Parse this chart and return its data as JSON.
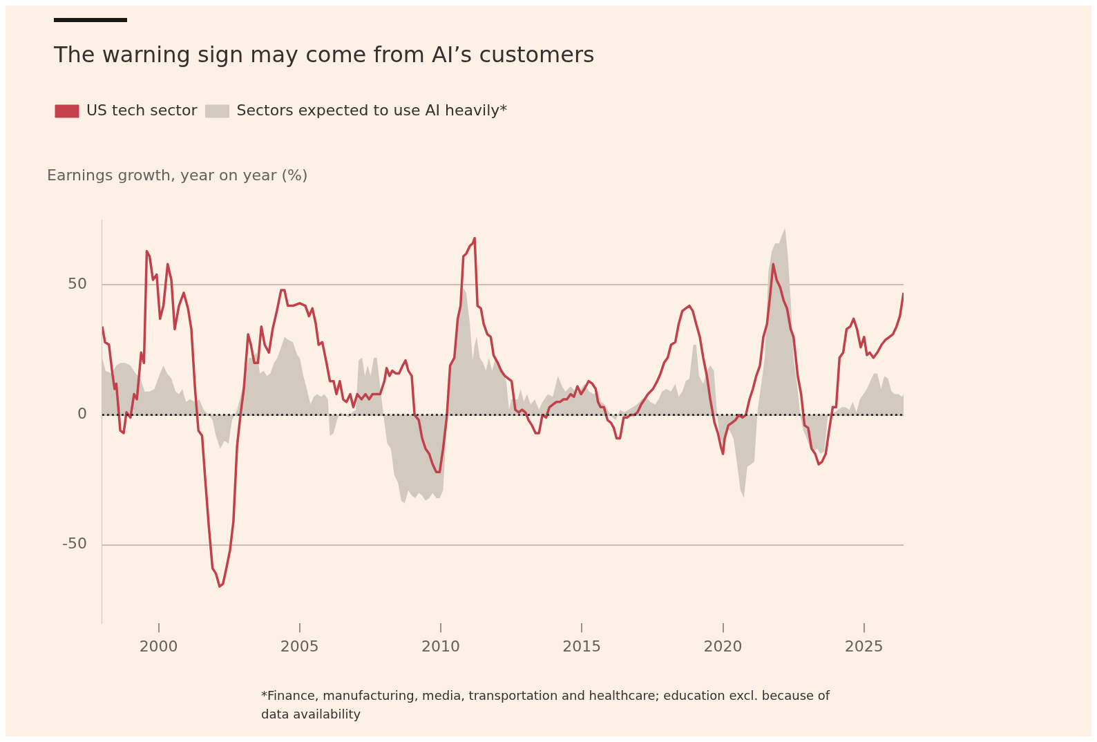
{
  "chart_data": {
    "type": "area",
    "title": "The warning sign may come from AI’s customers",
    "ylabel": "Earnings growth, year on year (%)",
    "annotations": [
      "*Finance, manufacturing, media, transportation and healthcare; education excl. because of data availability"
    ],
    "xlim": [
      1998,
      2026.4
    ],
    "xticks": [
      2000,
      2005,
      2010,
      2015,
      2020,
      2025
    ],
    "ylim": [
      -80,
      75
    ],
    "yticks": [
      -50,
      0,
      50
    ],
    "grid": "y",
    "legend": "top left",
    "ref_lines": [
      {
        "axis": "y",
        "value": 0,
        "label": null,
        "color": "#333333",
        "line_style": "dotted"
      }
    ],
    "series": [
      {
        "name": "US tech sector",
        "type": "line",
        "color": "#c2404a",
        "x": [
          1998.0,
          1998.1,
          1998.24,
          1998.36,
          1998.44,
          1998.5,
          1998.64,
          1998.76,
          1998.86,
          1999.0,
          1999.13,
          1999.23,
          1999.38,
          1999.48,
          1999.58,
          1999.68,
          1999.8,
          1999.93,
          2000.05,
          2000.17,
          2000.32,
          2000.45,
          2000.57,
          2000.72,
          2000.89,
          2001.04,
          2001.16,
          2001.29,
          2001.41,
          2001.54,
          2001.66,
          2001.78,
          2001.91,
          2002.03,
          2002.16,
          2002.28,
          2002.4,
          2002.53,
          2002.65,
          2002.78,
          2002.9,
          2003.02,
          2003.17,
          2003.27,
          2003.39,
          2003.52,
          2003.64,
          2003.76,
          2003.91,
          2004.04,
          2004.19,
          2004.34,
          2004.46,
          2004.58,
          2004.76,
          2005.0,
          2005.2,
          2005.33,
          2005.45,
          2005.57,
          2005.67,
          2005.8,
          2005.95,
          2006.07,
          2006.2,
          2006.3,
          2006.42,
          2006.54,
          2006.66,
          2006.79,
          2006.9,
          2007.04,
          2007.19,
          2007.33,
          2007.46,
          2007.58,
          2007.73,
          2007.85,
          2008.0,
          2008.08,
          2008.18,
          2008.28,
          2008.4,
          2008.52,
          2008.65,
          2008.75,
          2008.85,
          2008.97,
          2009.07,
          2009.22,
          2009.34,
          2009.46,
          2009.59,
          2009.71,
          2009.84,
          2009.96,
          2010.08,
          2010.21,
          2010.33,
          2010.48,
          2010.6,
          2010.7,
          2010.8,
          2010.9,
          2011.03,
          2011.13,
          2011.2,
          2011.3,
          2011.42,
          2011.52,
          2011.65,
          2011.77,
          2011.87,
          2012.02,
          2012.14,
          2012.27,
          2012.39,
          2012.51,
          2012.64,
          2012.76,
          2012.88,
          2013.0,
          2013.11,
          2013.23,
          2013.36,
          2013.48,
          2013.6,
          2013.73,
          2013.85,
          2013.97,
          2014.1,
          2014.22,
          2014.35,
          2014.47,
          2014.6,
          2014.72,
          2014.84,
          2014.97,
          2015.09,
          2015.24,
          2015.37,
          2015.49,
          2015.57,
          2015.66,
          2015.78,
          2015.91,
          2016.03,
          2016.13,
          2016.23,
          2016.35,
          2016.48,
          2016.6,
          2016.72,
          2016.85,
          2016.97,
          2017.1,
          2017.22,
          2017.34,
          2017.52,
          2017.67,
          2017.79,
          2017.91,
          2018.04,
          2018.16,
          2018.31,
          2018.43,
          2018.56,
          2018.68,
          2018.81,
          2018.93,
          2019.05,
          2019.18,
          2019.3,
          2019.43,
          2019.55,
          2019.7,
          2019.82,
          2019.92,
          2020.0,
          2020.06,
          2020.19,
          2020.32,
          2020.44,
          2020.57,
          2020.69,
          2020.81,
          2020.94,
          2021.06,
          2021.18,
          2021.31,
          2021.43,
          2021.56,
          2021.68,
          2021.78,
          2021.9,
          2022.03,
          2022.15,
          2022.27,
          2022.4,
          2022.5,
          2022.65,
          2022.77,
          2022.89,
          2023.02,
          2023.14,
          2023.27,
          2023.39,
          2023.51,
          2023.64,
          2023.76,
          2023.89,
          2024.01,
          2024.13,
          2024.26,
          2024.38,
          2024.51,
          2024.63,
          2024.75,
          2024.88,
          2025.0,
          2025.1,
          2025.2,
          2025.33,
          2025.47,
          2025.62,
          2025.77,
          2025.9,
          2026.02,
          2026.15,
          2026.27,
          2026.4
        ],
        "values": [
          34,
          28,
          27,
          16,
          10,
          12,
          -6,
          -7,
          1,
          -1,
          8,
          6,
          24,
          20,
          63,
          61,
          52,
          54,
          37,
          42,
          58,
          52,
          33,
          42,
          47,
          41,
          33,
          10,
          -6,
          -8,
          -26,
          -43,
          -59,
          -61,
          -66,
          -65,
          -59,
          -52,
          -41,
          -12,
          0,
          10,
          31,
          27,
          20,
          20,
          34,
          27,
          24,
          33,
          40,
          48,
          48,
          42,
          42,
          43,
          42,
          38,
          41,
          35,
          27,
          28,
          20,
          13,
          13,
          8,
          13,
          6,
          5,
          8,
          3,
          8,
          6,
          8,
          6,
          8,
          8,
          8,
          13,
          18,
          15,
          17,
          16,
          16,
          19,
          21,
          17,
          15,
          0,
          -2,
          -9,
          -13,
          -15,
          -19,
          -22,
          -22,
          -13,
          -1,
          19,
          22,
          37,
          42,
          61,
          62,
          65,
          66,
          68,
          42,
          41,
          35,
          31,
          30,
          23,
          20,
          17,
          15,
          14,
          13,
          2,
          1,
          2,
          1,
          -2,
          -4,
          -7,
          -7,
          0,
          -1,
          3,
          4,
          5,
          5,
          6,
          6,
          8,
          7,
          11,
          8,
          10,
          13,
          12,
          10,
          5,
          3,
          3,
          -2,
          -3,
          -5,
          -9,
          -9,
          -1,
          -1,
          0,
          0,
          1,
          4,
          6,
          8,
          10,
          13,
          16,
          20,
          22,
          27,
          28,
          35,
          40,
          41,
          42,
          40,
          35,
          30,
          22,
          15,
          6,
          -3,
          -7,
          -12,
          -15,
          -9,
          -4,
          -3,
          -2,
          0,
          -1,
          0,
          6,
          10,
          15,
          19,
          30,
          35,
          47,
          58,
          52,
          49,
          44,
          41,
          33,
          30,
          15,
          8,
          -4,
          -5,
          -13,
          -15,
          -19,
          -18,
          -15,
          -6,
          3,
          3,
          22,
          24,
          33,
          34,
          37,
          33,
          26,
          30,
          23,
          24,
          22,
          24,
          27,
          29,
          30,
          31,
          34,
          38,
          47
        ]
      },
      {
        "name": "Sectors expected to use AI heavily*",
        "color": "#d2c9bf",
        "x": [
          1998.0,
          1998.12,
          1998.32,
          1998.5,
          1998.64,
          1998.81,
          1999.0,
          1999.18,
          1999.36,
          1999.5,
          1999.68,
          1999.85,
          2000.05,
          2000.17,
          2000.3,
          2000.45,
          2000.6,
          2000.72,
          2000.84,
          2000.97,
          2001.11,
          2001.29,
          2001.44,
          2001.59,
          2001.78,
          2001.91,
          2002.03,
          2002.18,
          2002.33,
          2002.48,
          2002.6,
          2002.78,
          2002.92,
          2003.07,
          2003.2,
          2003.35,
          2003.47,
          2003.59,
          2003.72,
          2003.84,
          2003.96,
          2004.09,
          2004.21,
          2004.34,
          2004.46,
          2004.58,
          2004.76,
          2004.91,
          2005.0,
          2005.13,
          2005.25,
          2005.38,
          2005.5,
          2005.62,
          2005.75,
          2005.87,
          2006.0,
          2006.07,
          2006.2,
          2006.32,
          2006.44,
          2006.59,
          2006.74,
          2006.86,
          2006.99,
          2007.09,
          2007.21,
          2007.31,
          2007.41,
          2007.51,
          2007.63,
          2007.73,
          2007.85,
          2007.98,
          2008.1,
          2008.23,
          2008.35,
          2008.48,
          2008.6,
          2008.72,
          2008.85,
          2008.97,
          2009.1,
          2009.22,
          2009.34,
          2009.46,
          2009.59,
          2009.71,
          2009.84,
          2009.96,
          2010.08,
          2010.21,
          2010.33,
          2010.46,
          2010.58,
          2010.7,
          2010.8,
          2010.9,
          2011.03,
          2011.13,
          2011.2,
          2011.27,
          2011.38,
          2011.5,
          2011.6,
          2011.7,
          2011.82,
          2011.94,
          2012.07,
          2012.19,
          2012.32,
          2012.42,
          2012.5,
          2012.62,
          2012.73,
          2012.83,
          2012.94,
          2013.06,
          2013.18,
          2013.33,
          2013.48,
          2013.6,
          2013.8,
          2013.97,
          2014.15,
          2014.3,
          2014.42,
          2014.6,
          2014.77,
          2014.92,
          2015.09,
          2015.26,
          2015.41,
          2015.57,
          2015.68,
          2015.81,
          2015.96,
          2016.08,
          2016.2,
          2016.35,
          2016.5,
          2016.65,
          2016.82,
          2016.95,
          2017.12,
          2017.27,
          2017.42,
          2017.6,
          2017.72,
          2017.84,
          2017.99,
          2018.16,
          2018.31,
          2018.43,
          2018.56,
          2018.68,
          2018.81,
          2018.95,
          2019.05,
          2019.15,
          2019.3,
          2019.43,
          2019.55,
          2019.68,
          2019.8,
          2019.9,
          2020.0,
          2020.12,
          2020.24,
          2020.37,
          2020.49,
          2020.62,
          2020.74,
          2020.86,
          2020.99,
          2021.11,
          2021.23,
          2021.36,
          2021.48,
          2021.61,
          2021.73,
          2021.85,
          2021.99,
          2022.12,
          2022.2,
          2022.3,
          2022.4,
          2022.5,
          2022.62,
          2022.75,
          2022.85,
          2022.97,
          2023.09,
          2023.22,
          2023.34,
          2023.46,
          2023.59,
          2023.71,
          2023.84,
          2023.96,
          2024.08,
          2024.21,
          2024.33,
          2024.48,
          2024.6,
          2024.73,
          2024.85,
          2024.98,
          2025.1,
          2025.22,
          2025.35,
          2025.47,
          2025.6,
          2025.72,
          2025.85,
          2025.97,
          2026.1,
          2026.22,
          2026.35,
          2026.4
        ],
        "values": [
          22,
          17,
          16,
          19,
          20,
          20,
          19,
          16,
          14,
          9,
          9,
          10,
          16,
          19,
          16,
          14,
          9,
          8,
          10,
          5,
          6,
          5,
          6,
          2,
          0,
          -2,
          -8,
          -13,
          -10,
          -11,
          -2,
          2,
          8,
          16,
          22,
          22,
          24,
          16,
          17,
          15,
          16,
          20,
          22,
          26,
          30,
          29,
          28,
          23,
          22,
          15,
          10,
          4,
          7,
          8,
          7,
          8,
          6,
          -8,
          -7,
          -2,
          1,
          0,
          -1,
          1,
          2,
          21,
          22,
          15,
          19,
          15,
          22,
          22,
          11,
          -1,
          -11,
          -13,
          -23,
          -26,
          -33,
          -34,
          -29,
          -31,
          -32,
          -30,
          -31,
          -33,
          -32,
          -30,
          -32,
          -32,
          -29,
          -4,
          19,
          23,
          38,
          44,
          49,
          47,
          35,
          21,
          27,
          30,
          22,
          20,
          17,
          22,
          17,
          22,
          20,
          17,
          13,
          2,
          6,
          6,
          6,
          10,
          5,
          8,
          4,
          6,
          2,
          5,
          8,
          7,
          15,
          11,
          9,
          11,
          9,
          9,
          12,
          9,
          8,
          9,
          5,
          4,
          1,
          -1,
          -2,
          2,
          1,
          2,
          3,
          4,
          6,
          7,
          5,
          4,
          6,
          9,
          10,
          9,
          12,
          7,
          9,
          13,
          14,
          27,
          27,
          15,
          12,
          17,
          19,
          17,
          -1,
          -9,
          -11,
          -5,
          -6,
          -9,
          -18,
          -29,
          -32,
          -20,
          -19,
          -18,
          2,
          12,
          22,
          55,
          63,
          66,
          66,
          70,
          72,
          61,
          44,
          22,
          12,
          -1,
          -6,
          -9,
          -13,
          -14,
          -13,
          -15,
          -14,
          -1,
          1,
          1,
          2,
          3,
          3,
          2,
          5,
          1,
          6,
          8,
          10,
          13,
          16,
          16,
          10,
          15,
          14,
          9,
          8,
          8,
          7,
          8
        ]
      }
    ]
  }
}
